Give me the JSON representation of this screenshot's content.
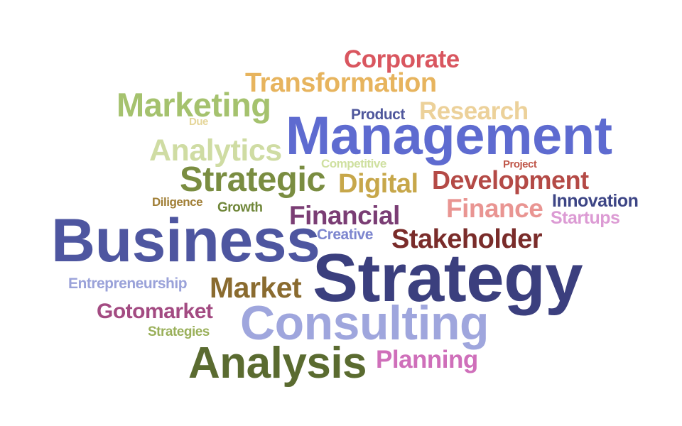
{
  "words": [
    {
      "id": "corporate",
      "text": "Corporate",
      "color": "#d9565f"
    },
    {
      "id": "transformation",
      "text": "Transformation",
      "color": "#e7b45e"
    },
    {
      "id": "marketing",
      "text": "Marketing",
      "color": "#a5c26e"
    },
    {
      "id": "product",
      "text": "Product",
      "color": "#4f579c"
    },
    {
      "id": "research",
      "text": "Research",
      "color": "#ecd19a"
    },
    {
      "id": "due",
      "text": "Due",
      "color": "#e5d69a"
    },
    {
      "id": "management",
      "text": "Management",
      "color": "#5e6bd0"
    },
    {
      "id": "analytics",
      "text": "Analytics",
      "color": "#cfdca3"
    },
    {
      "id": "competitive",
      "text": "Competitive",
      "color": "#cfe0a0"
    },
    {
      "id": "project",
      "text": "Project",
      "color": "#c0574a"
    },
    {
      "id": "strategic",
      "text": "Strategic",
      "color": "#7a8d41"
    },
    {
      "id": "digital",
      "text": "Digital",
      "color": "#c7a74a"
    },
    {
      "id": "development",
      "text": "Development",
      "color": "#b44a46"
    },
    {
      "id": "innovation",
      "text": "Innovation",
      "color": "#3d4585"
    },
    {
      "id": "diligence",
      "text": "Diligence",
      "color": "#a07e35"
    },
    {
      "id": "growth",
      "text": "Growth",
      "color": "#70873a"
    },
    {
      "id": "financial",
      "text": "Financial",
      "color": "#7a3d74"
    },
    {
      "id": "finance",
      "text": "Finance",
      "color": "#e99592"
    },
    {
      "id": "startups",
      "text": "Startups",
      "color": "#dc9bd4"
    },
    {
      "id": "business",
      "text": "Business",
      "color": "#4e56a0"
    },
    {
      "id": "creative",
      "text": "Creative",
      "color": "#7d86cf"
    },
    {
      "id": "stakeholder",
      "text": "Stakeholder",
      "color": "#7a2c2a"
    },
    {
      "id": "strategy",
      "text": "Strategy",
      "color": "#3b3f7e"
    },
    {
      "id": "entrepreneurship",
      "text": "Entrepreneurship",
      "color": "#9aa2d9"
    },
    {
      "id": "market",
      "text": "Market",
      "color": "#8a6b2f"
    },
    {
      "id": "gotomarket",
      "text": "Gotomarket",
      "color": "#a34b82"
    },
    {
      "id": "strategies",
      "text": "Strategies",
      "color": "#9ab05a"
    },
    {
      "id": "consulting",
      "text": "Consulting",
      "color": "#9fa6dd"
    },
    {
      "id": "analysis",
      "text": "Analysis",
      "color": "#5a6b30"
    },
    {
      "id": "planning",
      "text": "Planning",
      "color": "#cf6fba"
    }
  ]
}
